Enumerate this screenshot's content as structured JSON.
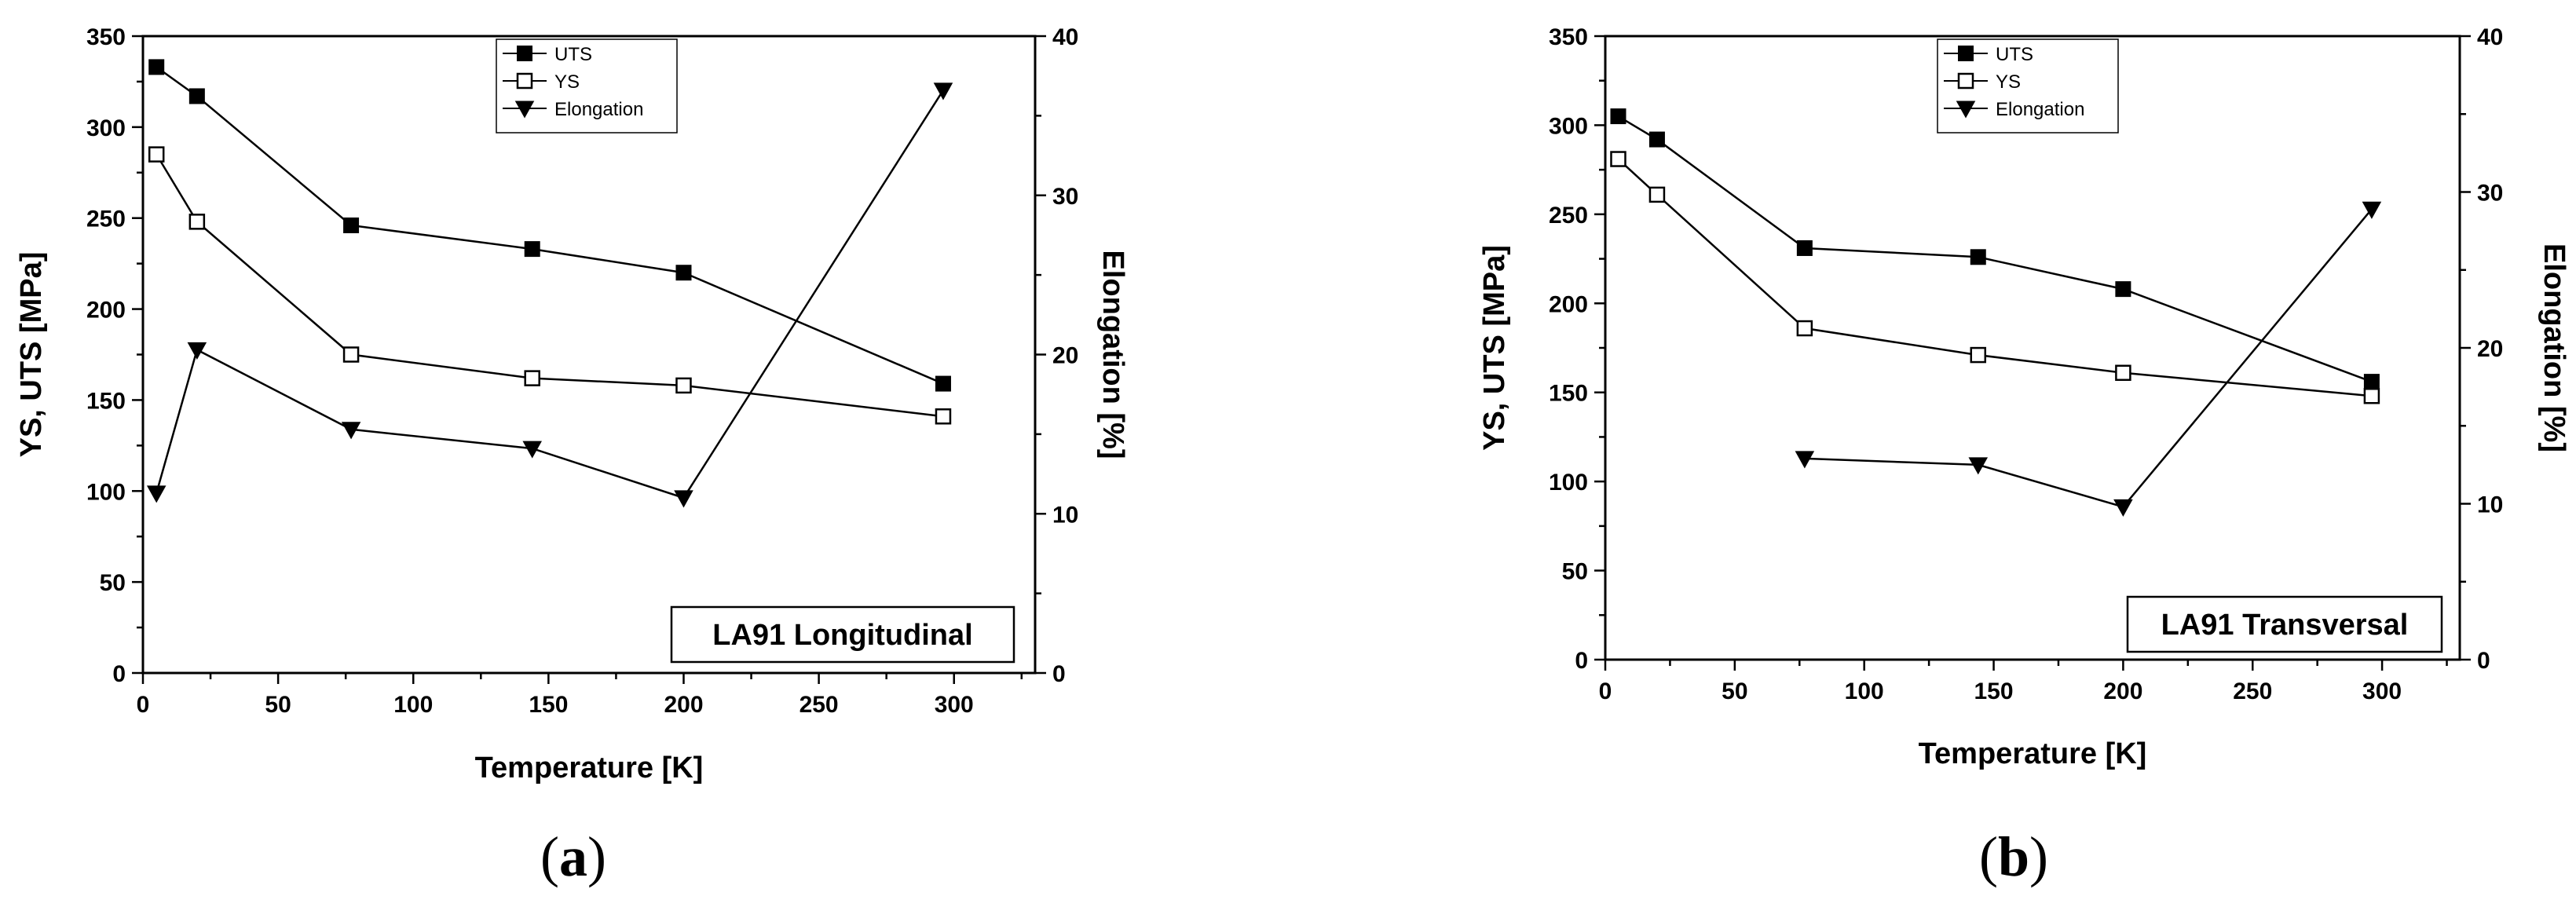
{
  "chart_data": [
    {
      "type": "line",
      "panel": "(a)",
      "annotation": "LA91 Longitudinal",
      "xlabel": "Temperature [K]",
      "ylabel": "YS, UTS [MPa]",
      "y2label": "Elongation [%]",
      "xlim": [
        0,
        330
      ],
      "ylim": [
        0,
        350
      ],
      "y2lim": [
        0,
        40
      ],
      "xticks": [
        0,
        50,
        100,
        150,
        200,
        250,
        300
      ],
      "yticks": [
        0,
        50,
        100,
        150,
        200,
        250,
        300,
        350
      ],
      "y2ticks": [
        0,
        10,
        20,
        30,
        40
      ],
      "legend": "top-center",
      "series": [
        {
          "name": "UTS",
          "axis": "left",
          "marker": "square-filled",
          "x": [
            5,
            20,
            77,
            144,
            200,
            296
          ],
          "values": [
            333,
            317,
            246,
            233,
            220,
            159
          ]
        },
        {
          "name": "YS",
          "axis": "left",
          "marker": "square-open",
          "x": [
            5,
            20,
            77,
            144,
            200,
            296
          ],
          "values": [
            285,
            248,
            175,
            162,
            158,
            141
          ]
        },
        {
          "name": "Elongation",
          "axis": "right",
          "marker": "triangle-down",
          "x": [
            5,
            20,
            77,
            144,
            200,
            296
          ],
          "values": [
            11.3,
            20.3,
            15.3,
            14.1,
            11.0,
            36.6
          ]
        }
      ]
    },
    {
      "type": "line",
      "panel": "(b)",
      "annotation": "LA91 Transversal",
      "xlabel": "Temperature [K]",
      "ylabel": "YS, UTS [MPa]",
      "y2label": "Elongation [%]",
      "xlim": [
        0,
        330
      ],
      "ylim": [
        0,
        350
      ],
      "y2lim": [
        0,
        40
      ],
      "xticks": [
        0,
        50,
        100,
        150,
        200,
        250,
        300
      ],
      "yticks": [
        0,
        50,
        100,
        150,
        200,
        250,
        300,
        350
      ],
      "y2ticks": [
        0,
        10,
        20,
        30,
        40
      ],
      "legend": "top-center",
      "series": [
        {
          "name": "UTS",
          "axis": "left",
          "marker": "square-filled",
          "x": [
            5,
            20,
            77,
            144,
            200,
            296
          ],
          "values": [
            305,
            292,
            231,
            226,
            208,
            156
          ]
        },
        {
          "name": "YS",
          "axis": "left",
          "marker": "square-open",
          "x": [
            5,
            20,
            77,
            144,
            200,
            296
          ],
          "values": [
            281,
            261,
            186,
            171,
            161,
            148
          ]
        },
        {
          "name": "Elongation",
          "axis": "right",
          "marker": "triangle-down",
          "x": [
            77,
            144,
            200,
            296
          ],
          "values": [
            12.9,
            12.5,
            9.8,
            28.9
          ]
        }
      ]
    }
  ]
}
